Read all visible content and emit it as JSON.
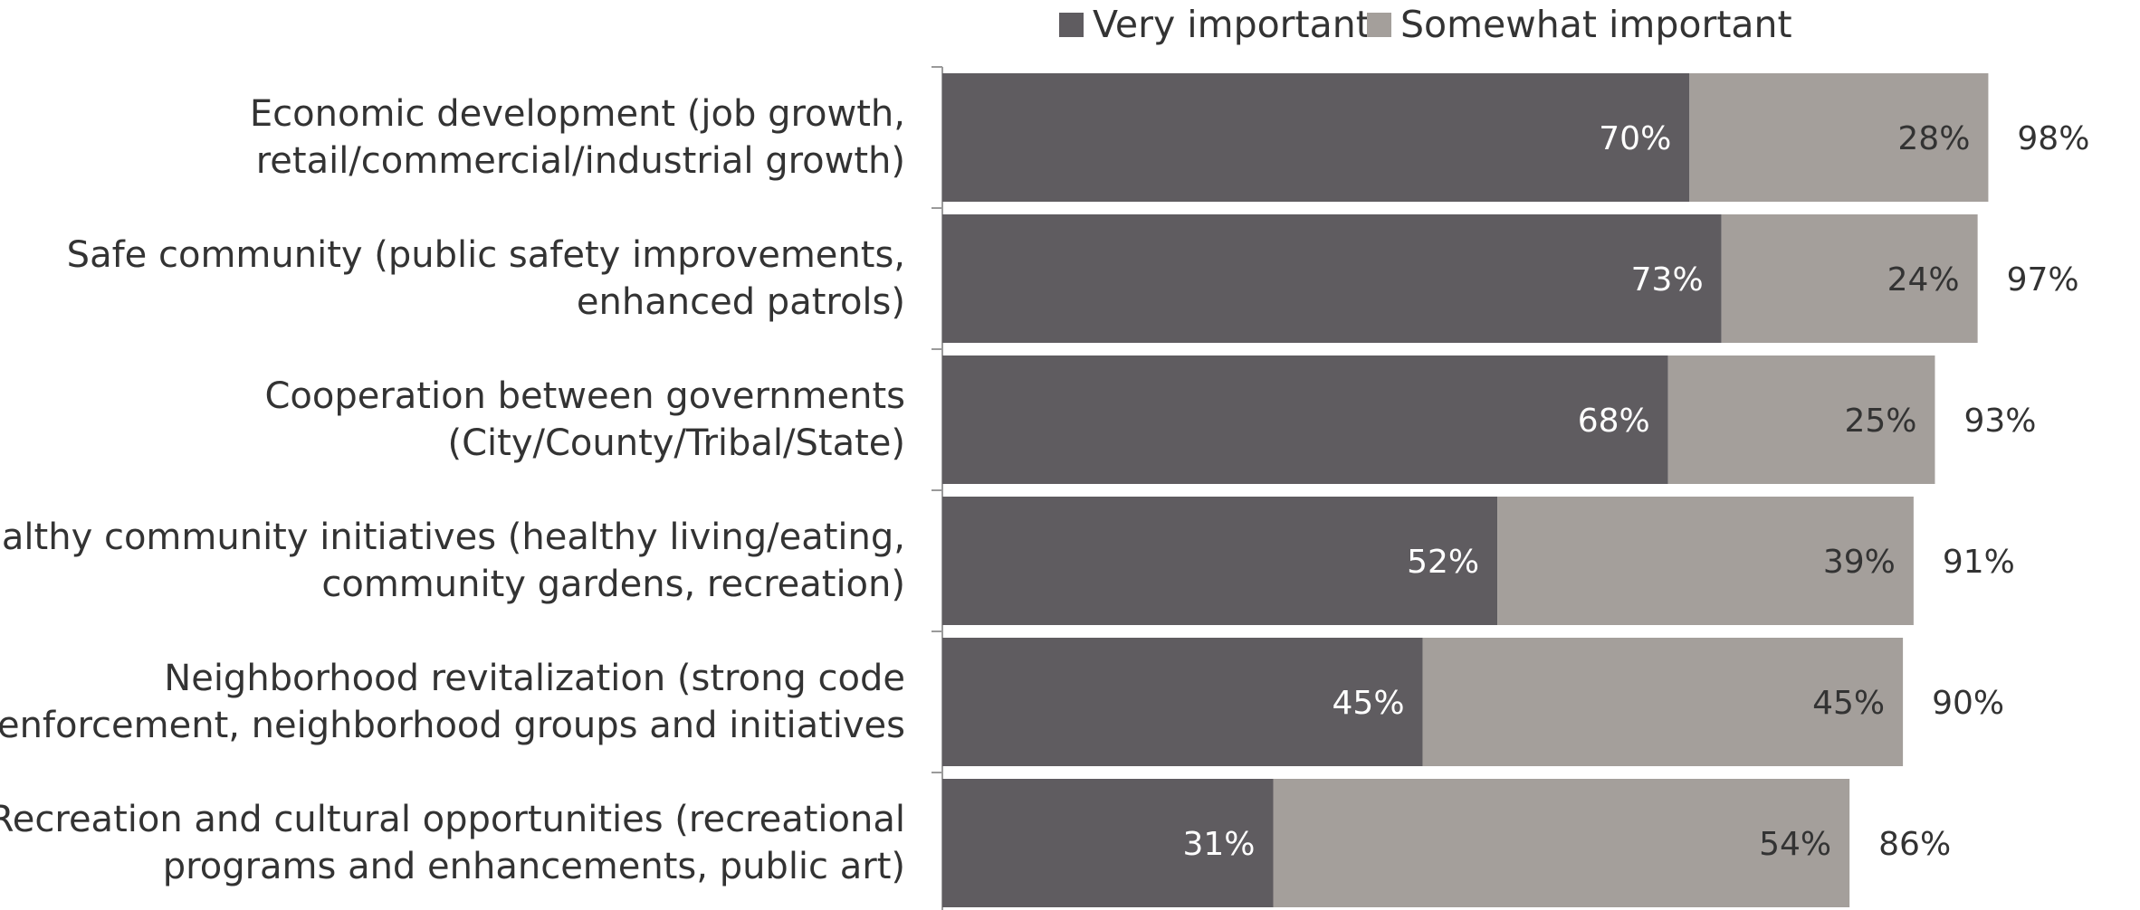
{
  "chart_data": {
    "type": "bar",
    "orientation": "horizontal",
    "stacked": true,
    "title": "",
    "xlabel": "",
    "ylabel": "",
    "legend_position": "top",
    "grid": false,
    "colors": {
      "very": "#5f5c60",
      "somewhat": "#a49f9b"
    },
    "categories": [
      [
        "Economic development (job growth,",
        "retail/commercial/industrial growth)"
      ],
      [
        "Safe community (public safety improvements,",
        "enhanced patrols)"
      ],
      [
        "Cooperation between governments",
        "(City/County/Tribal/State)"
      ],
      [
        "Healthy community initiatives (healthy living/eating,",
        "community gardens, recreation)"
      ],
      [
        "Neighborhood revitalization (strong code",
        "enforcement, neighborhood groups and initiatives"
      ],
      [
        "Recreation and cultural opportunities (recreational",
        "programs and enhancements, public art)"
      ]
    ],
    "series": [
      {
        "name": "Very important",
        "values": [
          70,
          73,
          68,
          52,
          45,
          31
        ],
        "labels": [
          "70%",
          "73%",
          "68%",
          "52%",
          "45%",
          "31%"
        ]
      },
      {
        "name": "Somewhat important",
        "values": [
          28,
          24,
          25,
          39,
          45,
          54
        ],
        "labels": [
          "28%",
          "24%",
          "25%",
          "39%",
          "45%",
          "54%"
        ]
      }
    ],
    "totals": [
      "98%",
      "97%",
      "93%",
      "91%",
      "90%",
      "86%"
    ]
  }
}
